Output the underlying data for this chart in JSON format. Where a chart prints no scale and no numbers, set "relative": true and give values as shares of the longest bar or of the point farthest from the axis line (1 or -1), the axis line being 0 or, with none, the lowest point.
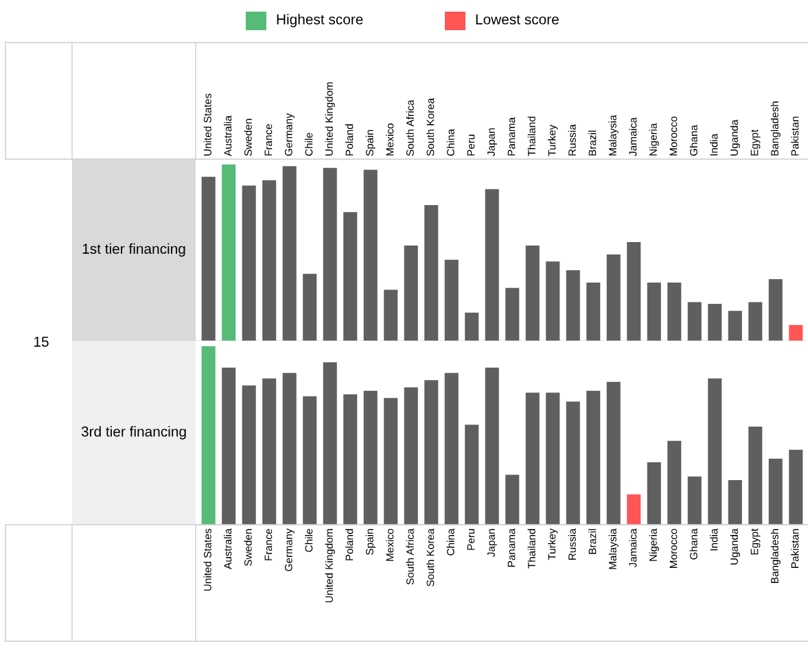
{
  "chart_data": [
    {
      "type": "bar",
      "title": "1st tier financing",
      "relative": true,
      "annotations": [
        "15",
        "Highest score",
        "Lowest score"
      ],
      "categories": [
        "United States",
        "Australia",
        "Sweden",
        "France",
        "Germany",
        "Chile",
        "United Kingdom",
        "Poland",
        "Spain",
        "Mexico",
        "South Africa",
        "South Korea",
        "China",
        "Peru",
        "Japan",
        "Panama",
        "Thailand",
        "Turkey",
        "Russia",
        "Brazil",
        "Malaysia",
        "Jamaica",
        "Nigeria",
        "Morocco",
        "Ghana",
        "India",
        "Uganda",
        "Egypt",
        "Bangladesh",
        "Pakistan"
      ],
      "values": [
        0.93,
        1,
        0.88,
        0.91,
        0.99,
        0.38,
        0.98,
        0.73,
        0.97,
        0.29,
        0.54,
        0.77,
        0.46,
        0.16,
        0.86,
        0.3,
        0.54,
        0.45,
        0.4,
        0.33,
        0.49,
        0.56,
        0.33,
        0.33,
        0.22,
        0.21,
        0.17,
        0.22,
        0.35,
        0.09
      ],
      "colors": [
        "#5f5f5f",
        "#55bb77",
        "#5f5f5f",
        "#5f5f5f",
        "#5f5f5f",
        "#5f5f5f",
        "#5f5f5f",
        "#5f5f5f",
        "#5f5f5f",
        "#5f5f5f",
        "#5f5f5f",
        "#5f5f5f",
        "#5f5f5f",
        "#5f5f5f",
        "#5f5f5f",
        "#5f5f5f",
        "#5f5f5f",
        "#5f5f5f",
        "#5f5f5f",
        "#5f5f5f",
        "#5f5f5f",
        "#5f5f5f",
        "#5f5f5f",
        "#5f5f5f",
        "#5f5f5f",
        "#5f5f5f",
        "#5f5f5f",
        "#5f5f5f",
        "#5f5f5f",
        "#ff5555"
      ]
    },
    {
      "type": "bar",
      "title": "3rd tier financing",
      "relative": true,
      "categories": [
        "United States",
        "Australia",
        "Sweden",
        "France",
        "Germany",
        "Chile",
        "United Kingdom",
        "Poland",
        "Spain",
        "Mexico",
        "South Africa",
        "South Korea",
        "China",
        "Peru",
        "Japan",
        "Panama",
        "Thailand",
        "Turkey",
        "Russia",
        "Brazil",
        "Malaysia",
        "Jamaica",
        "Nigeria",
        "Morocco",
        "Ghana",
        "India",
        "Uganda",
        "Egypt",
        "Bangladesh",
        "Pakistan"
      ],
      "values": [
        1,
        0.88,
        0.78,
        0.82,
        0.85,
        0.72,
        0.91,
        0.73,
        0.75,
        0.71,
        0.77,
        0.81,
        0.85,
        0.56,
        0.88,
        0.28,
        0.74,
        0.74,
        0.69,
        0.75,
        0.8,
        0.17,
        0.35,
        0.47,
        0.27,
        0.82,
        0.25,
        0.55,
        0.37,
        0.42
      ],
      "colors": [
        "#55bb77",
        "#5f5f5f",
        "#5f5f5f",
        "#5f5f5f",
        "#5f5f5f",
        "#5f5f5f",
        "#5f5f5f",
        "#5f5f5f",
        "#5f5f5f",
        "#5f5f5f",
        "#5f5f5f",
        "#5f5f5f",
        "#5f5f5f",
        "#5f5f5f",
        "#5f5f5f",
        "#5f5f5f",
        "#5f5f5f",
        "#5f5f5f",
        "#5f5f5f",
        "#5f5f5f",
        "#5f5f5f",
        "#ff5555",
        "#5f5f5f",
        "#5f5f5f",
        "#5f5f5f",
        "#5f5f5f",
        "#5f5f5f",
        "#5f5f5f",
        "#5f5f5f",
        "#5f5f5f"
      ]
    }
  ]
}
